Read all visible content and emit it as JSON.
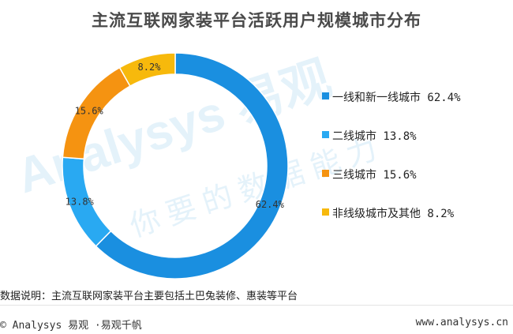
{
  "chart_data": {
    "type": "pie",
    "title": "主流互联网家装平台活跃用户规模城市分布",
    "categories": [
      "一线和新一线城市",
      "二线城市",
      "三线城市",
      "非线级城市及其他"
    ],
    "values": [
      62.4,
      13.8,
      15.6,
      8.2
    ],
    "value_labels": [
      "62.4%",
      "13.8%",
      "15.6%",
      "8.2%"
    ],
    "legend_labels": [
      "一线和新一线城市 62.4%",
      "二线城市 13.8%",
      "三线城市 15.6%",
      "非线级城市及其他 8.2%"
    ],
    "colors": [
      "#1a8fe0",
      "#29a9f2",
      "#f59311",
      "#f7b90c"
    ],
    "donut": true,
    "legend_position": "right"
  },
  "note": "数据说明：主流互联网家装平台主要包括土巴兔装修、惠装等平台",
  "footer": {
    "left": "© Analysys 易观 ·易观千帆",
    "right": "www.analysys.cn"
  },
  "watermark": {
    "brand": "Analysys 易观",
    "slogan": "你要的数据能力"
  }
}
